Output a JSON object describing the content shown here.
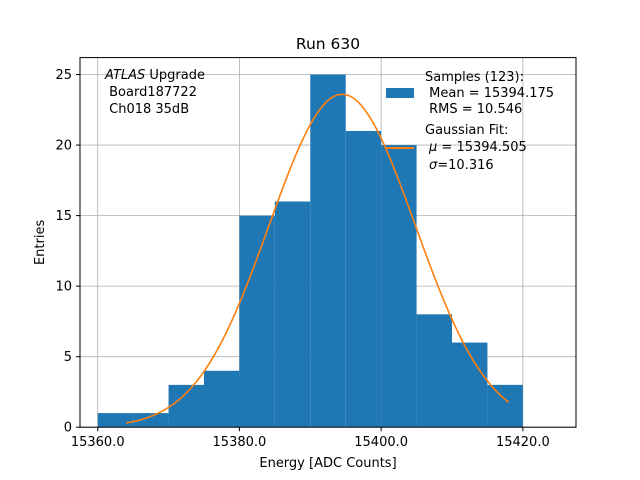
{
  "chart_data": {
    "type": "bar",
    "title": "Run 630",
    "xlabel": "Energy [ADC Counts]",
    "ylabel": "Entries",
    "xlim": [
      15357.5,
      15427.5
    ],
    "ylim": [
      0,
      26.2
    ],
    "xticks": [
      15360.0,
      15380.0,
      15400.0,
      15420.0
    ],
    "xtick_labels": [
      "15360.0",
      "15380.0",
      "15400.0",
      "15420.0"
    ],
    "yticks": [
      0,
      5,
      10,
      15,
      20,
      25
    ],
    "ytick_labels": [
      "0",
      "5",
      "10",
      "15",
      "20",
      "25"
    ],
    "grid": true,
    "bin_edges": [
      15360,
      15365,
      15370,
      15375,
      15380,
      15385,
      15390,
      15395,
      15400,
      15405,
      15410,
      15415,
      15420
    ],
    "values": [
      1,
      1,
      3,
      4,
      15,
      16,
      25,
      21,
      20,
      8,
      6,
      3
    ],
    "bar_color": "#1f77b4",
    "fit": {
      "type": "gaussian",
      "color": "#ff7f0e",
      "mu": 15394.505,
      "sigma": 10.316,
      "amplitude": 23.6,
      "x_range": [
        15364,
        15418
      ]
    },
    "annotation": {
      "atlas_italic": "ATLAS",
      "atlas_rest": " Upgrade",
      "line2": " Board187722",
      "line3": " Ch018 35dB"
    },
    "legend": {
      "placement": "top-right",
      "samples_label": "Samples (123):",
      "mean_label": " Mean = 15394.175",
      "rms_label": " RMS = 10.546",
      "fit_title": "Gaussian Fit:",
      "mu_symbol": "μ",
      "mu_value": " = 15394.505",
      "sigma_symbol": "σ",
      "sigma_value": "=10.316"
    }
  }
}
